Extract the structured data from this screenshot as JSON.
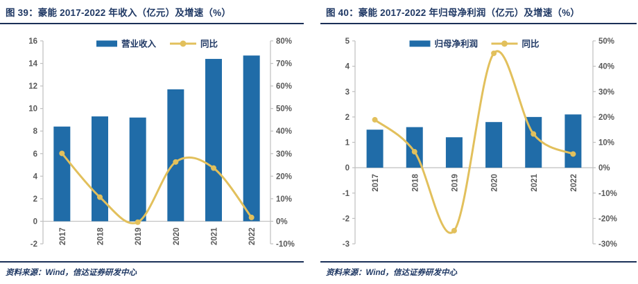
{
  "figures": [
    {
      "source": "资料来源：Wind，信达证券研发中心"
    },
    {
      "source": "资料来源：Wind，信达证券研发中心"
    }
  ],
  "colors": {
    "bar": "#206CA8",
    "line": "#E2C05C",
    "title": "#1F3864",
    "legend_text": "#1F3864",
    "axis_text": "#595959",
    "axis_line": "#BFBFBF",
    "rule": "#1a2f57"
  },
  "chart_data": [
    {
      "type": "bar+line",
      "title": "图 39：豪能 2017-2022 年收入（亿元）及增速（%）",
      "categories": [
        "2017",
        "2018",
        "2019",
        "2020",
        "2021",
        "2022"
      ],
      "series": [
        {
          "name": "营业收入",
          "type": "bar",
          "axis": "left",
          "color": "#206CA8",
          "values": [
            8.4,
            9.3,
            9.2,
            11.7,
            14.4,
            14.7
          ]
        },
        {
          "name": "同比",
          "type": "line",
          "axis": "right",
          "color": "#E2C05C",
          "values": [
            30.1,
            10.7,
            -0.4,
            26.3,
            23.6,
            1.7
          ]
        }
      ],
      "left_axis": {
        "min": -2,
        "max": 16,
        "step": 2,
        "suffix": ""
      },
      "right_axis": {
        "min": -10,
        "max": 80,
        "step": 10,
        "suffix": "%"
      },
      "legend_position": "top",
      "grid": false
    },
    {
      "type": "bar+line",
      "title": "图 40：豪能 2017-2022 年归母净利润（亿元）及增速（%）",
      "categories": [
        "2017",
        "2018",
        "2019",
        "2020",
        "2021",
        "2022"
      ],
      "series": [
        {
          "name": "归母净利润",
          "type": "bar",
          "axis": "left",
          "color": "#206CA8",
          "values": [
            1.5,
            1.6,
            1.2,
            1.8,
            2.0,
            2.1
          ]
        },
        {
          "name": "同比",
          "type": "line",
          "axis": "right",
          "color": "#E2C05C",
          "values": [
            18.9,
            6.3,
            -24.8,
            45.1,
            13.3,
            5.4
          ]
        }
      ],
      "left_axis": {
        "min": -3,
        "max": 5,
        "step": 1,
        "suffix": ""
      },
      "right_axis": {
        "min": -30,
        "max": 50,
        "step": 10,
        "suffix": "%"
      },
      "legend_position": "top",
      "grid": false
    }
  ]
}
